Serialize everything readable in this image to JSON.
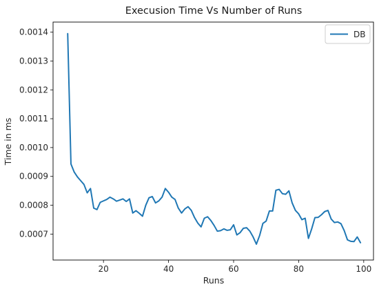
{
  "chart_data": {
    "type": "line",
    "title": "Execusion Time Vs Number of Runs",
    "xlabel": "Runs",
    "ylabel": "Time in ms",
    "xlim": [
      4.5,
      103
    ],
    "ylim": [
      0.00061,
      0.001435
    ],
    "xticks": [
      20,
      40,
      60,
      80,
      100
    ],
    "yticks": [
      0.0007,
      0.0008,
      0.0009,
      0.001,
      0.0011,
      0.0012,
      0.0013,
      0.0014
    ],
    "ytick_labels": [
      "0.0007",
      "0.0008",
      "0.0009",
      "0.0010",
      "0.0011",
      "0.0012",
      "0.0013",
      "0.0014"
    ],
    "grid": false,
    "legend_position": "top-right",
    "series": [
      {
        "name": "DB",
        "color": "#1f77b4",
        "x": [
          9,
          10,
          11,
          12,
          13,
          14,
          15,
          16,
          17,
          18,
          19,
          20,
          21,
          22,
          23,
          24,
          25,
          26,
          27,
          28,
          29,
          30,
          31,
          32,
          33,
          34,
          35,
          36,
          37,
          38,
          39,
          40,
          41,
          42,
          43,
          44,
          45,
          46,
          47,
          48,
          49,
          50,
          51,
          52,
          53,
          54,
          55,
          56,
          57,
          58,
          59,
          60,
          61,
          62,
          63,
          64,
          65,
          66,
          67,
          68,
          69,
          70,
          71,
          72,
          73,
          74,
          75,
          76,
          77,
          78,
          79,
          80,
          81,
          82,
          83,
          84,
          85,
          86,
          87,
          88,
          89,
          90,
          91,
          92,
          93,
          94,
          95,
          96,
          97,
          98,
          99
        ],
        "y": [
          0.001395,
          0.000943,
          0.000915,
          0.000898,
          0.000885,
          0.000872,
          0.000843,
          0.000858,
          0.00079,
          0.000785,
          0.00081,
          0.000815,
          0.00082,
          0.000828,
          0.000822,
          0.000814,
          0.000818,
          0.000822,
          0.000813,
          0.000822,
          0.000773,
          0.000781,
          0.000772,
          0.000762,
          0.0008,
          0.000826,
          0.00083,
          0.000808,
          0.000815,
          0.000828,
          0.000858,
          0.000845,
          0.000828,
          0.00082,
          0.00079,
          0.000773,
          0.000787,
          0.000795,
          0.000782,
          0.000757,
          0.000738,
          0.000725,
          0.000755,
          0.00076,
          0.000747,
          0.00073,
          0.00071,
          0.000712,
          0.000718,
          0.000713,
          0.000715,
          0.000732,
          0.000697,
          0.000705,
          0.00072,
          0.000722,
          0.00071,
          0.00069,
          0.000665,
          0.000695,
          0.000737,
          0.000745,
          0.00078,
          0.00078,
          0.000852,
          0.000855,
          0.00084,
          0.000838,
          0.00085,
          0.000808,
          0.000782,
          0.00077,
          0.00075,
          0.000755,
          0.000685,
          0.000718,
          0.000757,
          0.000758,
          0.000767,
          0.000778,
          0.000782,
          0.000752,
          0.00074,
          0.000742,
          0.000736,
          0.000712,
          0.00068,
          0.000675,
          0.000674,
          0.00069,
          0.00067
        ]
      }
    ]
  }
}
